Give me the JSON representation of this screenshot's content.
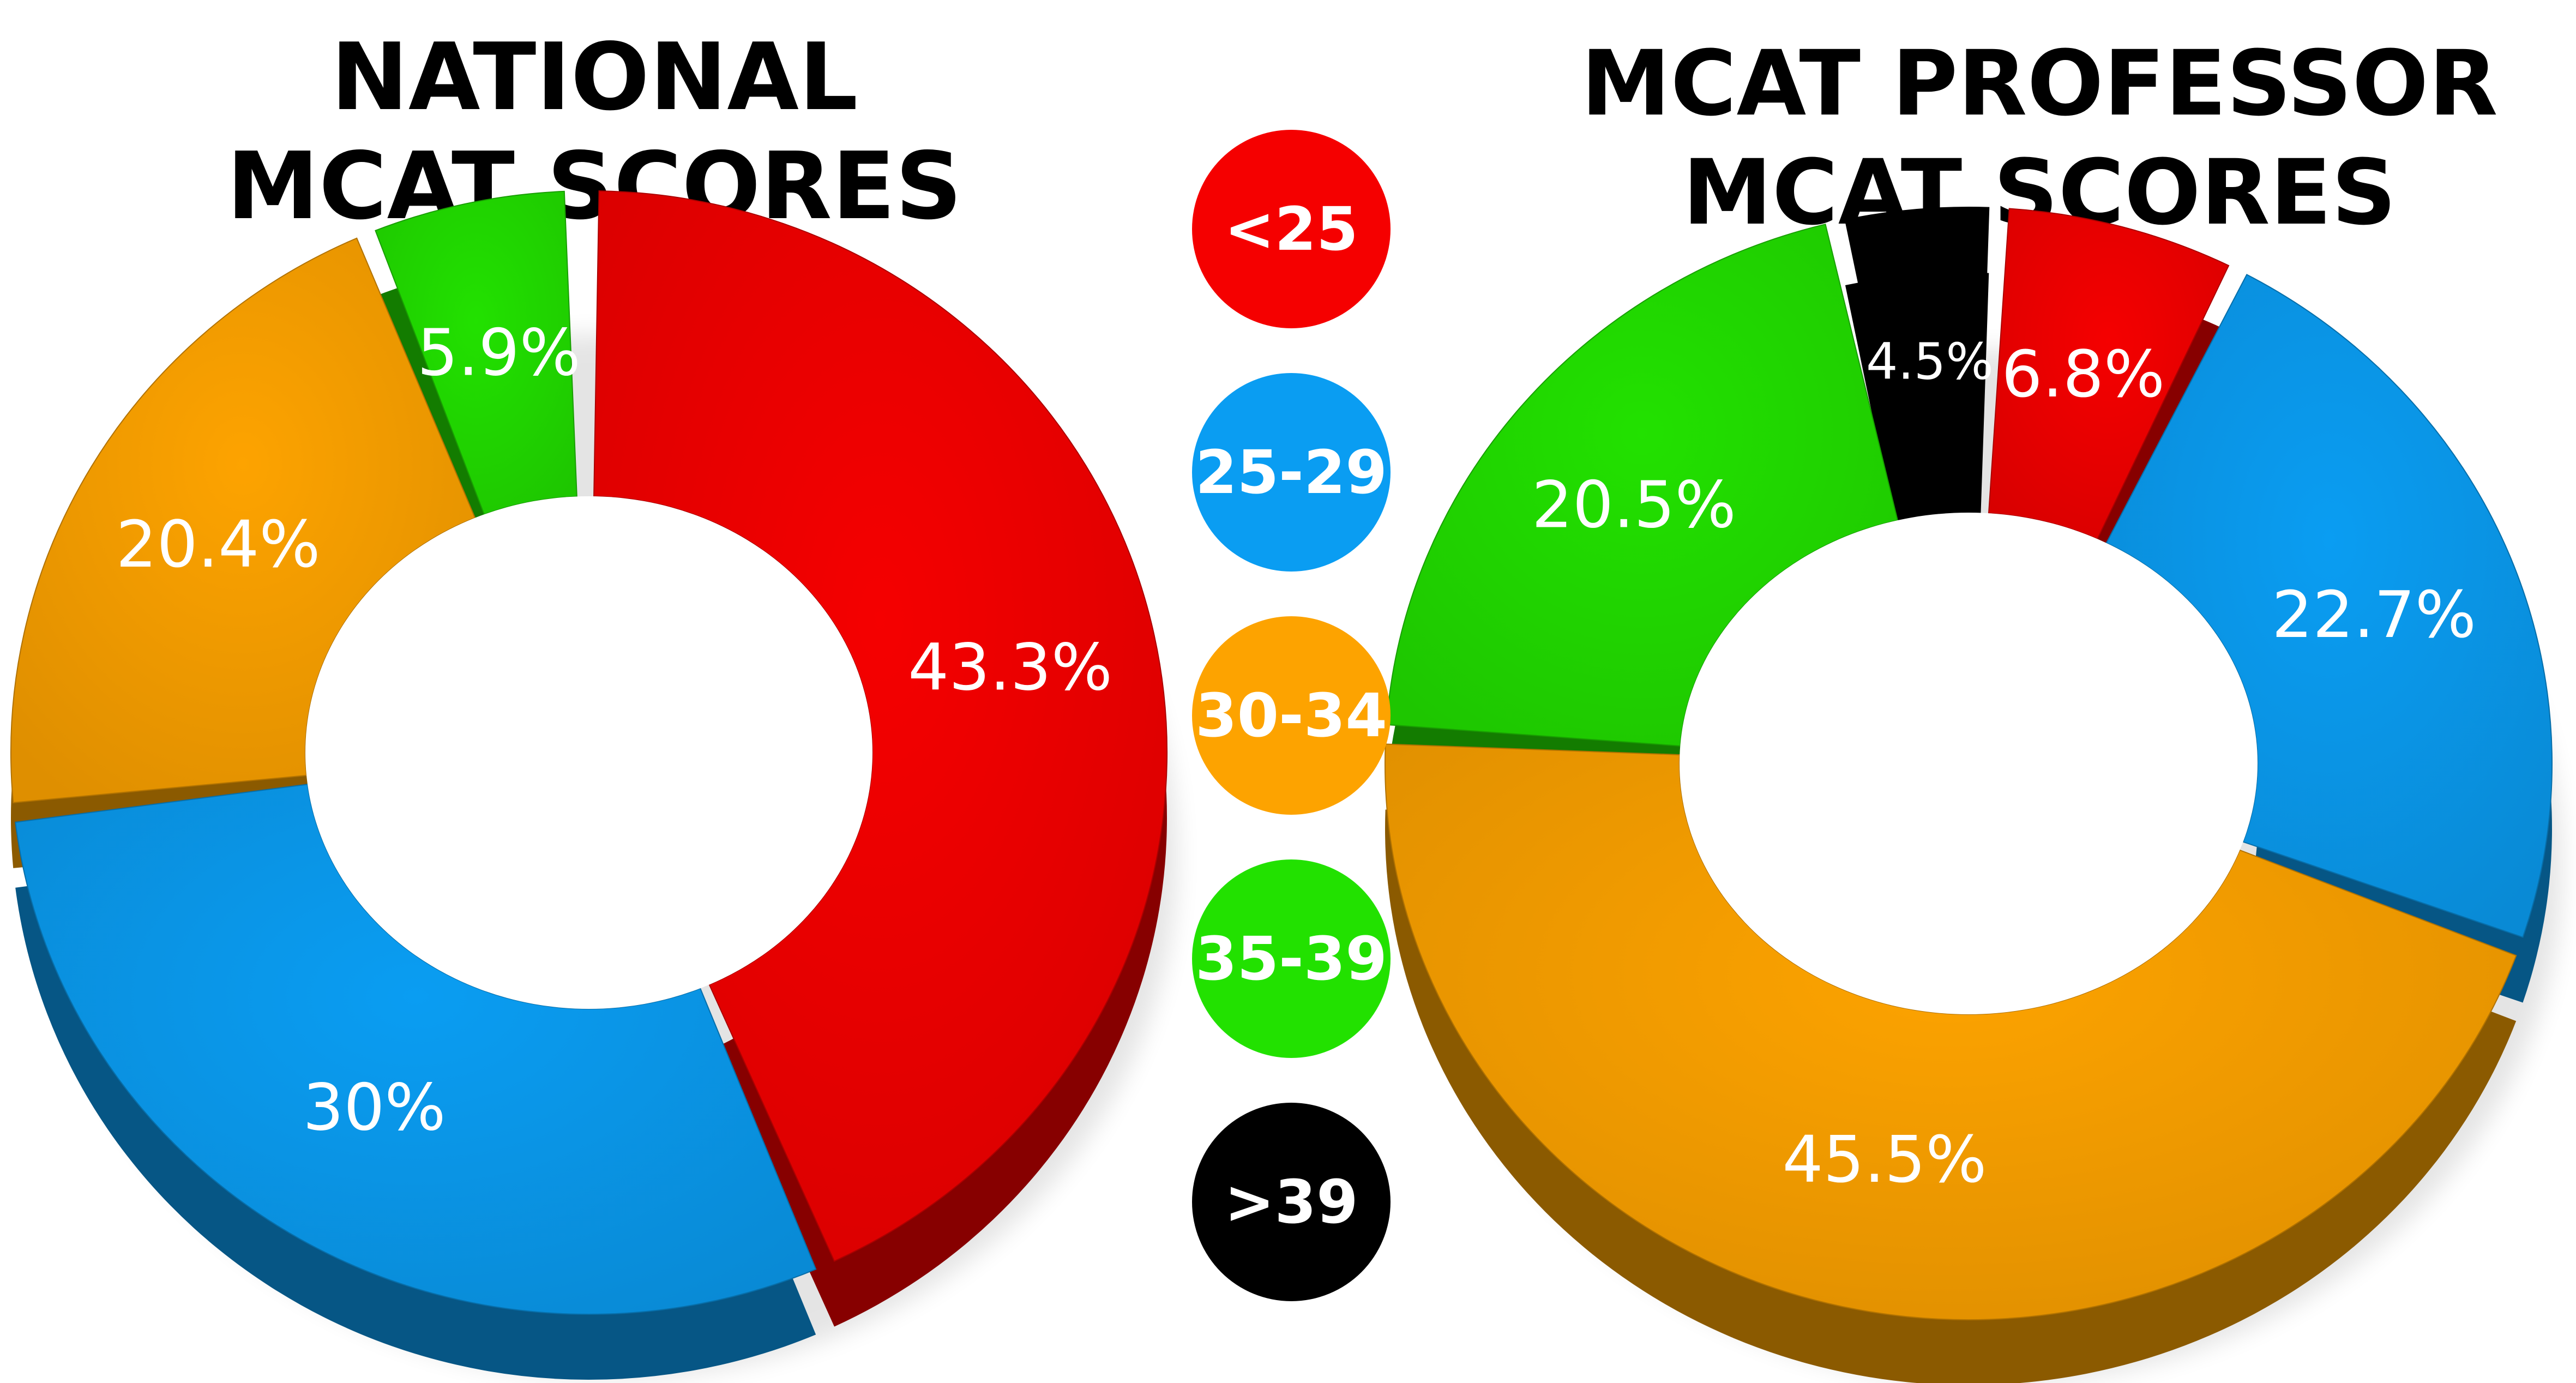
{
  "legend": [
    {
      "label": "<25",
      "color": "#f50000"
    },
    {
      "label": "25-29",
      "color": "#0a9df2"
    },
    {
      "label": "30-34",
      "color": "#fda300"
    },
    {
      "label": "35-39",
      "color": "#22e100"
    },
    {
      "label": ">39",
      "color": "#000000"
    }
  ],
  "chart_data": [
    {
      "type": "pie",
      "title_lines": [
        "NATIONAL",
        "MCAT SCORES"
      ],
      "categories": [
        "<25",
        "25-29",
        "30-34",
        "35-39",
        ">39"
      ],
      "values": [
        43.3,
        30,
        20.4,
        5.9,
        0.4
      ],
      "labels": [
        "43.3%",
        "30%",
        "20.4%",
        "5.9%",
        ""
      ],
      "colors": [
        "#f50000",
        "#0a9df2",
        "#fda300",
        "#22e100",
        "#000000"
      ]
    },
    {
      "type": "pie",
      "title_lines": [
        "MCAT PROFESSOR",
        "MCAT SCORES"
      ],
      "categories": [
        "<25",
        "25-29",
        "30-34",
        "35-39",
        ">39"
      ],
      "values": [
        6.8,
        22.7,
        45.5,
        20.5,
        4.5
      ],
      "labels": [
        "6.8%",
        "22.7%",
        "45.5%",
        "20.5%",
        "4.5%"
      ],
      "colors": [
        "#f50000",
        "#0a9df2",
        "#fda300",
        "#22e100",
        "#000000"
      ]
    }
  ]
}
